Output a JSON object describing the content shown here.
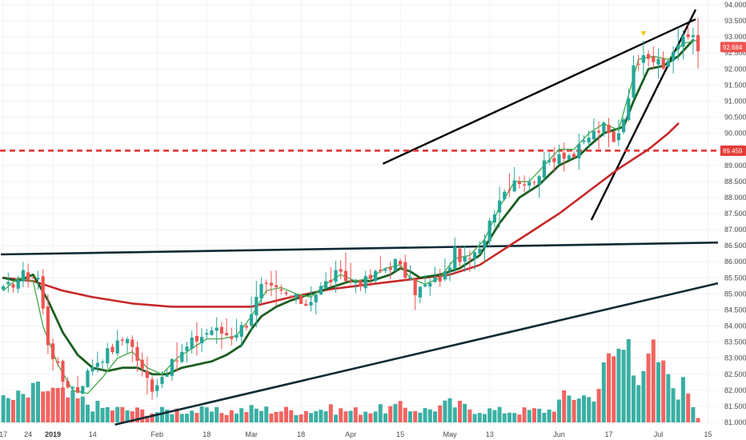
{
  "chart_data": {
    "type": "candlestick",
    "title": "",
    "colors": {
      "up": "#26a69a",
      "down": "#ef5350",
      "ma_slow": "#c62828",
      "ma_mid": "#1b5e20",
      "ma_fast": "#4caf50",
      "trendline": "#000000",
      "channel_line": "#0d2a35",
      "horizontal_level": "#e53935",
      "marker": "#f9c80e"
    },
    "price_axis": {
      "range": [
        80.9,
        94.15
      ],
      "ticks": [
        "94.000",
        "93.500",
        "93.000",
        "92.500",
        "92.000",
        "91.500",
        "91.000",
        "90.500",
        "90.000",
        "89.500",
        "89.000",
        "88.500",
        "88.000",
        "87.500",
        "87.000",
        "86.500",
        "86.000",
        "85.500",
        "85.000",
        "84.500",
        "84.000",
        "83.500",
        "83.000",
        "82.500",
        "82.000",
        "81.500",
        "81.000"
      ]
    },
    "time_axis": {
      "labels": [
        {
          "text": "17",
          "bar": 0,
          "bold": false
        },
        {
          "text": "24",
          "bar": 5,
          "bold": false
        },
        {
          "text": "2019",
          "bar": 10,
          "bold": true
        },
        {
          "text": "14",
          "bar": 18,
          "bold": false
        },
        {
          "text": "Feb",
          "bar": 31,
          "bold": false
        },
        {
          "text": "18",
          "bar": 41,
          "bold": false
        },
        {
          "text": "Mar",
          "bar": 50,
          "bold": false
        },
        {
          "text": "18",
          "bar": 60,
          "bold": false
        },
        {
          "text": "Apr",
          "bar": 70,
          "bold": false
        },
        {
          "text": "15",
          "bar": 80,
          "bold": false
        },
        {
          "text": "May",
          "bar": 90,
          "bold": false
        },
        {
          "text": "13",
          "bar": 98,
          "bold": false
        },
        {
          "text": "Jun",
          "bar": 112,
          "bold": false
        },
        {
          "text": "17",
          "bar": 122,
          "bold": false
        },
        {
          "text": "Jul",
          "bar": 132,
          "bold": false
        },
        {
          "text": "15",
          "bar": 142,
          "bold": false
        }
      ]
    },
    "price_tags": [
      {
        "value": 92.684,
        "label": "92.684",
        "color": "#ef5350"
      },
      {
        "value": 89.459,
        "label": "89.459",
        "color": "#e53935"
      }
    ],
    "horizontal_level": 89.459,
    "marker": {
      "bar": 129,
      "price": 93.08
    },
    "trendlines": [
      {
        "style": "upper-wedge",
        "from": {
          "bar": 77,
          "price": 89.05
        },
        "to": {
          "bar": 140,
          "price": 93.55
        }
      },
      {
        "style": "steep-support",
        "from": {
          "bar": 119,
          "price": 87.3
        },
        "to": {
          "bar": 140,
          "price": 93.85
        }
      },
      {
        "style": "channel-top",
        "from": {
          "bar": 0,
          "price": 86.23
        },
        "to": {
          "bar": 145,
          "price": 86.6
        }
      },
      {
        "style": "channel-bottom",
        "from": {
          "bar": 23,
          "price": 80.93
        },
        "to": {
          "bar": 145,
          "price": 85.35
        }
      }
    ],
    "ohlc_anchors": [
      [
        0,
        85.1
      ],
      [
        4,
        85.6
      ],
      [
        7,
        85.5
      ],
      [
        9,
        83.5
      ],
      [
        12,
        82.3
      ],
      [
        15,
        82.0
      ],
      [
        18,
        82.8
      ],
      [
        22,
        83.3
      ],
      [
        25,
        83.7
      ],
      [
        28,
        82.6
      ],
      [
        30,
        82.1
      ],
      [
        34,
        82.8
      ],
      [
        38,
        83.5
      ],
      [
        42,
        83.9
      ],
      [
        46,
        83.7
      ],
      [
        49,
        84.1
      ],
      [
        52,
        85.2
      ],
      [
        55,
        85.1
      ],
      [
        58,
        84.9
      ],
      [
        61,
        84.7
      ],
      [
        64,
        85.2
      ],
      [
        67,
        85.6
      ],
      [
        70,
        85.4
      ],
      [
        73,
        85.4
      ],
      [
        76,
        85.7
      ],
      [
        79,
        86.0
      ],
      [
        81,
        85.6
      ],
      [
        83,
        85.1
      ],
      [
        86,
        85.3
      ],
      [
        89,
        85.6
      ],
      [
        91,
        86.3
      ],
      [
        93,
        86.0
      ],
      [
        96,
        86.3
      ],
      [
        98,
        87.3
      ],
      [
        100,
        88.0
      ],
      [
        103,
        88.6
      ],
      [
        106,
        88.4
      ],
      [
        109,
        89.0
      ],
      [
        112,
        89.4
      ],
      [
        115,
        89.3
      ],
      [
        118,
        89.9
      ],
      [
        121,
        90.2
      ],
      [
        123,
        89.7
      ],
      [
        125,
        90.5
      ],
      [
        127,
        92.0
      ],
      [
        129,
        92.6
      ],
      [
        131,
        92.3
      ],
      [
        133,
        92.0
      ],
      [
        135,
        92.6
      ],
      [
        137,
        92.9
      ],
      [
        139,
        93.1
      ],
      [
        140,
        92.7
      ]
    ],
    "ma_slow_anchors": [
      [
        0,
        85.5
      ],
      [
        6,
        85.4
      ],
      [
        12,
        85.1
      ],
      [
        18,
        84.9
      ],
      [
        26,
        84.7
      ],
      [
        34,
        84.6
      ],
      [
        42,
        84.6
      ],
      [
        50,
        84.6
      ],
      [
        58,
        84.9
      ],
      [
        66,
        85.15
      ],
      [
        74,
        85.3
      ],
      [
        82,
        85.45
      ],
      [
        90,
        85.6
      ],
      [
        96,
        85.9
      ],
      [
        100,
        86.3
      ],
      [
        106,
        86.9
      ],
      [
        112,
        87.5
      ],
      [
        118,
        88.2
      ],
      [
        124,
        88.9
      ],
      [
        130,
        89.5
      ],
      [
        134,
        90.0
      ],
      [
        136,
        90.3
      ]
    ],
    "ma_mid_anchors": [
      [
        0,
        85.5
      ],
      [
        3,
        85.4
      ],
      [
        6,
        85.6
      ],
      [
        9,
        84.8
      ],
      [
        12,
        83.8
      ],
      [
        15,
        83.1
      ],
      [
        18,
        82.7
      ],
      [
        21,
        82.6
      ],
      [
        24,
        82.7
      ],
      [
        27,
        82.7
      ],
      [
        30,
        82.5
      ],
      [
        33,
        82.5
      ],
      [
        36,
        82.7
      ],
      [
        39,
        82.8
      ],
      [
        42,
        82.9
      ],
      [
        45,
        83.1
      ],
      [
        48,
        83.4
      ],
      [
        50,
        83.9
      ],
      [
        52,
        84.3
      ],
      [
        55,
        84.6
      ],
      [
        58,
        84.8
      ],
      [
        62,
        85.0
      ],
      [
        66,
        85.2
      ],
      [
        70,
        85.4
      ],
      [
        74,
        85.4
      ],
      [
        78,
        85.6
      ],
      [
        80,
        85.8
      ],
      [
        82,
        85.7
      ],
      [
        84,
        85.5
      ],
      [
        88,
        85.6
      ],
      [
        92,
        85.8
      ],
      [
        96,
        86.2
      ],
      [
        100,
        87.2
      ],
      [
        104,
        88.0
      ],
      [
        108,
        88.4
      ],
      [
        112,
        89.0
      ],
      [
        116,
        89.3
      ],
      [
        118,
        89.6
      ],
      [
        121,
        90.0
      ],
      [
        125,
        90.2
      ],
      [
        127,
        91.0
      ],
      [
        130,
        92.0
      ],
      [
        133,
        92.1
      ],
      [
        136,
        92.4
      ],
      [
        139,
        92.9
      ]
    ],
    "ma_fast_anchors": [
      [
        0,
        85.1
      ],
      [
        3,
        85.5
      ],
      [
        6,
        85.4
      ],
      [
        8,
        84.0
      ],
      [
        11,
        82.8
      ],
      [
        14,
        82.0
      ],
      [
        17,
        81.9
      ],
      [
        20,
        82.4
      ],
      [
        23,
        83.0
      ],
      [
        26,
        83.2
      ],
      [
        29,
        82.7
      ],
      [
        32,
        82.5
      ],
      [
        35,
        83.0
      ],
      [
        38,
        83.3
      ],
      [
        41,
        83.6
      ],
      [
        44,
        83.6
      ],
      [
        47,
        83.7
      ],
      [
        50,
        84.3
      ],
      [
        53,
        85.1
      ],
      [
        56,
        85.2
      ],
      [
        59,
        85.0
      ],
      [
        62,
        84.9
      ],
      [
        65,
        85.3
      ],
      [
        68,
        85.6
      ],
      [
        71,
        85.4
      ],
      [
        74,
        85.5
      ],
      [
        77,
        85.8
      ],
      [
        80,
        85.9
      ],
      [
        82,
        85.5
      ],
      [
        85,
        85.3
      ],
      [
        88,
        85.5
      ],
      [
        91,
        86.1
      ],
      [
        94,
        86.2
      ],
      [
        97,
        86.7
      ],
      [
        100,
        87.7
      ],
      [
        103,
        88.5
      ],
      [
        106,
        88.5
      ],
      [
        109,
        89.0
      ],
      [
        112,
        89.5
      ],
      [
        115,
        89.5
      ],
      [
        118,
        90.0
      ],
      [
        121,
        90.3
      ],
      [
        124,
        90.1
      ],
      [
        126,
        91.2
      ],
      [
        128,
        92.3
      ],
      [
        131,
        92.4
      ],
      [
        134,
        92.3
      ],
      [
        137,
        92.8
      ],
      [
        140,
        92.9
      ]
    ],
    "volume_anchors": [
      [
        0,
        0.22
      ],
      [
        5,
        0.28
      ],
      [
        8,
        0.36
      ],
      [
        10,
        0.32
      ],
      [
        13,
        0.26
      ],
      [
        16,
        0.22
      ],
      [
        20,
        0.15
      ],
      [
        25,
        0.13
      ],
      [
        30,
        0.11
      ],
      [
        35,
        0.13
      ],
      [
        40,
        0.12
      ],
      [
        45,
        0.11
      ],
      [
        50,
        0.14
      ],
      [
        55,
        0.13
      ],
      [
        60,
        0.12
      ],
      [
        65,
        0.14
      ],
      [
        70,
        0.12
      ],
      [
        75,
        0.13
      ],
      [
        80,
        0.16
      ],
      [
        85,
        0.13
      ],
      [
        90,
        0.19
      ],
      [
        95,
        0.14
      ],
      [
        100,
        0.12
      ],
      [
        105,
        0.12
      ],
      [
        110,
        0.13
      ],
      [
        113,
        0.25
      ],
      [
        116,
        0.3
      ],
      [
        118,
        0.26
      ],
      [
        120,
        0.4
      ],
      [
        122,
        0.62
      ],
      [
        124,
        0.78
      ],
      [
        125,
        0.72
      ],
      [
        126,
        1.0
      ],
      [
        127,
        0.78
      ],
      [
        128,
        0.58
      ],
      [
        129,
        0.62
      ],
      [
        130,
        0.55
      ],
      [
        131,
        0.74
      ],
      [
        132,
        0.48
      ],
      [
        133,
        0.7
      ],
      [
        134,
        0.4
      ],
      [
        136,
        0.38
      ],
      [
        138,
        0.36
      ],
      [
        140,
        0.06
      ]
    ],
    "bar_count": 141,
    "volume_max_height_ratio": 1.0,
    "right_edge_bar_gap": 6
  }
}
